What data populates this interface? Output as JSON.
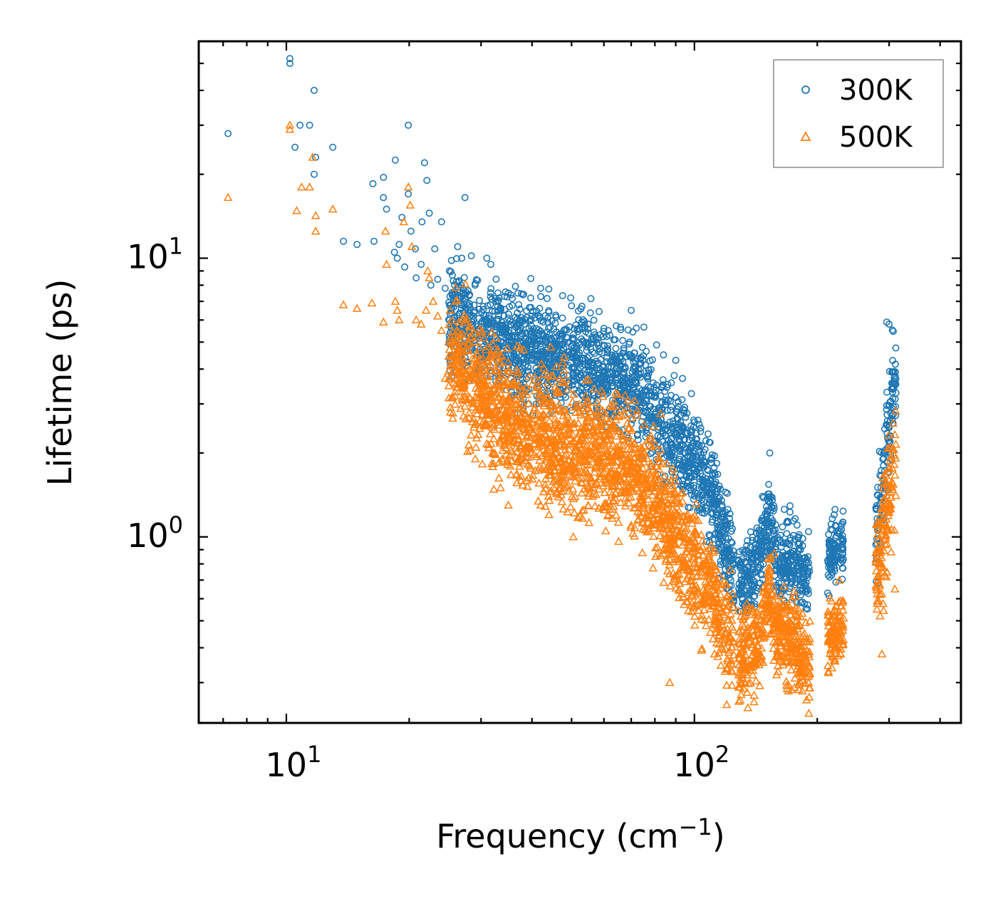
{
  "chart_data": {
    "type": "scatter",
    "title": "",
    "xlabel": "Frequency (cm⁻¹)",
    "ylabel": "Lifetime (ps)",
    "xscale": "log",
    "yscale": "log",
    "xlim": [
      6.1,
      450
    ],
    "ylim": [
      0.215,
      60
    ],
    "xticks": [
      {
        "base": "10",
        "exp": "1",
        "value": 10
      },
      {
        "base": "10",
        "exp": "2",
        "value": 100
      }
    ],
    "yticks": [
      {
        "base": "10",
        "exp": "0",
        "value": 1
      },
      {
        "base": "10",
        "exp": "1",
        "value": 10
      }
    ],
    "legend": {
      "position": "top-right"
    },
    "series": [
      {
        "name": "300K",
        "marker": "circle-open",
        "color": "#1f77b4",
        "points": [
          [
            7.2,
            28.0
          ],
          [
            10.2,
            52.0
          ],
          [
            10.2,
            50.0
          ],
          [
            10.5,
            25.0
          ],
          [
            10.8,
            30.0
          ],
          [
            11.4,
            30.0
          ],
          [
            11.7,
            40.0
          ],
          [
            11.8,
            23.0
          ],
          [
            11.7,
            20.0
          ],
          [
            13.0,
            25.0
          ],
          [
            13.8,
            11.5
          ],
          [
            14.9,
            11.2
          ],
          [
            16.3,
            18.5
          ],
          [
            16.4,
            11.5
          ],
          [
            17.3,
            19.5
          ],
          [
            17.3,
            16.5
          ],
          [
            17.6,
            15.0
          ],
          [
            18.4,
            10.5
          ],
          [
            18.5,
            22.5
          ],
          [
            18.7,
            10.0
          ],
          [
            18.9,
            11.2
          ],
          [
            19.2,
            14.0
          ],
          [
            19.5,
            9.3
          ],
          [
            19.9,
            30.0
          ],
          [
            19.9,
            17.0
          ],
          [
            20.2,
            12.5
          ],
          [
            20.7,
            10.8
          ],
          [
            20.8,
            8.5
          ],
          [
            21.4,
            9.5
          ],
          [
            21.5,
            13.5
          ],
          [
            21.8,
            22.0
          ],
          [
            22.1,
            19.0
          ],
          [
            22.4,
            14.5
          ],
          [
            22.6,
            8.0
          ],
          [
            23.1,
            10.8
          ],
          [
            23.5,
            8.4
          ],
          [
            24.0,
            13.5
          ],
          [
            24.5,
            7.8
          ],
          [
            25.1,
            9.0
          ],
          [
            26.3,
            11.0
          ],
          [
            26.9,
            10.0
          ],
          [
            27.4,
            16.5
          ],
          [
            28.4,
            10.2
          ],
          [
            29.0,
            8.0
          ],
          [
            31.0,
            10.0
          ],
          [
            31.7,
            9.5
          ],
          [
            33.2,
            7.2
          ],
          [
            35.0,
            7.5
          ],
          [
            38.0,
            7.4
          ],
          [
            42.0,
            7.8
          ],
          [
            44.0,
            6.4
          ],
          [
            47.5,
            6.1
          ],
          [
            60.0,
            5.6
          ],
          [
            70.0,
            6.5
          ],
          [
            84.0,
            4.5
          ],
          [
            90.0,
            4.3
          ],
          [
            93.5,
            3.7
          ],
          [
            98.0,
            2.5
          ],
          [
            148.0,
            0.97
          ],
          [
            153.0,
            2.0
          ],
          [
            180.0,
            1.0
          ],
          [
            220.0,
            1.2
          ],
          [
            225.0,
            1.05
          ],
          [
            285.0,
            0.95
          ],
          [
            296.0,
            5.9
          ],
          [
            300.0,
            5.8
          ]
        ]
      },
      {
        "name": "500K",
        "marker": "triangle-open",
        "color": "#ff7f0e",
        "points": [
          [
            7.2,
            16.5
          ],
          [
            10.2,
            30.0
          ],
          [
            10.2,
            29.0
          ],
          [
            10.6,
            14.8
          ],
          [
            10.9,
            18.0
          ],
          [
            11.4,
            18.0
          ],
          [
            11.6,
            23.0
          ],
          [
            11.8,
            12.5
          ],
          [
            11.8,
            14.2
          ],
          [
            13.0,
            15.0
          ],
          [
            13.8,
            6.8
          ],
          [
            14.9,
            6.6
          ],
          [
            16.2,
            6.9
          ],
          [
            17.3,
            5.9
          ],
          [
            17.5,
            12.5
          ],
          [
            17.6,
            9.5
          ],
          [
            18.5,
            7.0
          ],
          [
            18.7,
            6.5
          ],
          [
            18.9,
            6.0
          ],
          [
            19.4,
            13.5
          ],
          [
            19.9,
            18.0
          ],
          [
            20.1,
            15.5
          ],
          [
            20.3,
            11.0
          ],
          [
            20.8,
            6.0
          ],
          [
            21.4,
            5.8
          ],
          [
            22.0,
            6.5
          ],
          [
            22.2,
            9.0
          ],
          [
            22.4,
            8.5
          ],
          [
            22.9,
            7.0
          ],
          [
            23.5,
            6.2
          ],
          [
            24.0,
            5.5
          ],
          [
            24.5,
            3.7
          ],
          [
            25.0,
            5.0
          ],
          [
            26.0,
            7.0
          ],
          [
            27.4,
            6.0
          ],
          [
            28.0,
            4.9
          ],
          [
            29.0,
            5.0
          ],
          [
            31.0,
            3.2
          ],
          [
            32.4,
            2.0
          ],
          [
            33.5,
            1.5
          ],
          [
            35.0,
            1.3
          ],
          [
            38.0,
            2.0
          ],
          [
            42.0,
            1.3
          ],
          [
            48.0,
            1.5
          ],
          [
            50.5,
            1.0
          ],
          [
            55.0,
            1.4
          ],
          [
            60.0,
            1.7
          ],
          [
            67.0,
            1.45
          ],
          [
            70.0,
            1.1
          ],
          [
            78.0,
            1.2
          ],
          [
            87.0,
            0.3
          ],
          [
            98.0,
            0.75
          ],
          [
            112.0,
            0.38
          ],
          [
            120.0,
            0.25
          ],
          [
            140.0,
            0.27
          ],
          [
            162.0,
            0.36
          ],
          [
            170.0,
            0.28
          ],
          [
            189.0,
            0.39
          ],
          [
            220.0,
            0.36
          ],
          [
            228.0,
            0.38
          ],
          [
            280.0,
            0.55
          ],
          [
            288.0,
            0.38
          ],
          [
            310.0,
            0.65
          ]
        ]
      }
    ]
  }
}
